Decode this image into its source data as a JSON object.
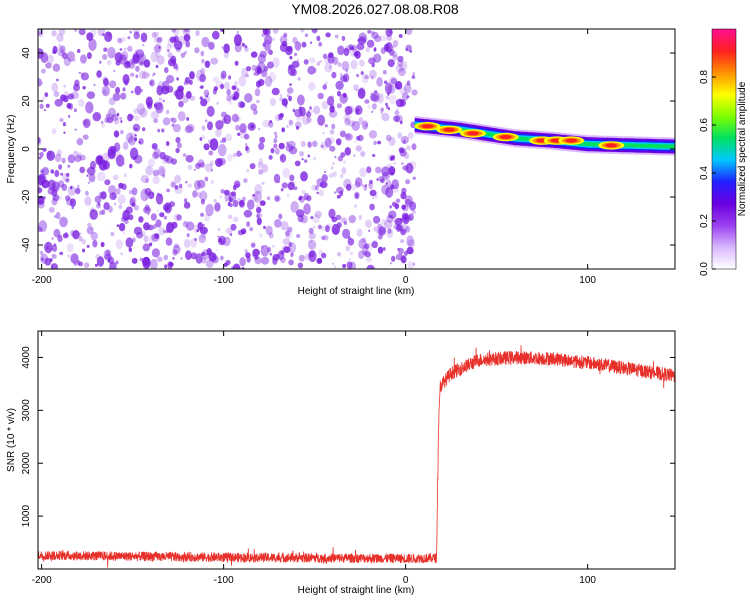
{
  "figure": {
    "title": "YM08.2026.027.08.08.R08"
  },
  "chart_data": [
    {
      "type": "heatmap",
      "xlabel": "Height of straight line (km)",
      "ylabel": "Frequency (Hz)",
      "xlim": [
        -202,
        148
      ],
      "ylim": [
        -50,
        50
      ],
      "xticks": [
        -200,
        -100,
        0,
        100
      ],
      "yticks": [
        -40,
        -20,
        0,
        20,
        40
      ],
      "colorbar": {
        "label": "Normalized spectral amplitude",
        "range": [
          0,
          1
        ],
        "ticks": [
          "0.0",
          "0.2",
          "0.4",
          "0.6",
          "0.8"
        ],
        "colors": [
          "#ffffff",
          "#d9b8ff",
          "#9b40f0",
          "#6a00e0",
          "#2020ff",
          "#00c8ff",
          "#00e060",
          "#80ff00",
          "#ffff00",
          "#ff9000",
          "#ff2020",
          "#ff1090"
        ]
      },
      "noise_region_x": [
        -202,
        5
      ],
      "noise_color": "#7a1fe0",
      "signal_band": {
        "x_start": 5,
        "x_end": 148,
        "center_frequency": [
          {
            "x": 5,
            "y": 10
          },
          {
            "x": 30,
            "y": 8
          },
          {
            "x": 60,
            "y": 4.5
          },
          {
            "x": 80,
            "y": 3.5
          },
          {
            "x": 100,
            "y": 2
          },
          {
            "x": 148,
            "y": 1
          }
        ],
        "peaks": [
          {
            "x": 12,
            "y": 9.5
          },
          {
            "x": 24,
            "y": 8
          },
          {
            "x": 37,
            "y": 6.5
          },
          {
            "x": 55,
            "y": 5
          },
          {
            "x": 75,
            "y": 3.5
          },
          {
            "x": 83,
            "y": 3.5
          },
          {
            "x": 91,
            "y": 3.5
          },
          {
            "x": 113,
            "y": 1.5
          }
        ]
      }
    },
    {
      "type": "line",
      "xlabel": "Height of straight line (km)",
      "ylabel": "SNR (10 * v/v)",
      "xlim": [
        -202,
        148
      ],
      "ylim": [
        0,
        4500
      ],
      "xticks": [
        -200,
        -100,
        0,
        100
      ],
      "yticks": [
        1000,
        2000,
        3000,
        4000
      ],
      "color": "#e8302a",
      "series": [
        {
          "segments": [
            {
              "x": -202,
              "y": 260
            },
            {
              "x": -150,
              "y": 240
            },
            {
              "x": -100,
              "y": 220
            },
            {
              "x": -50,
              "y": 210
            },
            {
              "x": 0,
              "y": 200
            },
            {
              "x": 17,
              "y": 210
            },
            {
              "x": 18,
              "y": 2600
            },
            {
              "x": 19,
              "y": 3450
            },
            {
              "x": 25,
              "y": 3700
            },
            {
              "x": 40,
              "y": 3950
            },
            {
              "x": 60,
              "y": 4000
            },
            {
              "x": 80,
              "y": 3980
            },
            {
              "x": 100,
              "y": 3900
            },
            {
              "x": 120,
              "y": 3800
            },
            {
              "x": 148,
              "y": 3650
            }
          ],
          "noise_amplitude_low": 90,
          "noise_amplitude_high": 130
        }
      ]
    }
  ]
}
